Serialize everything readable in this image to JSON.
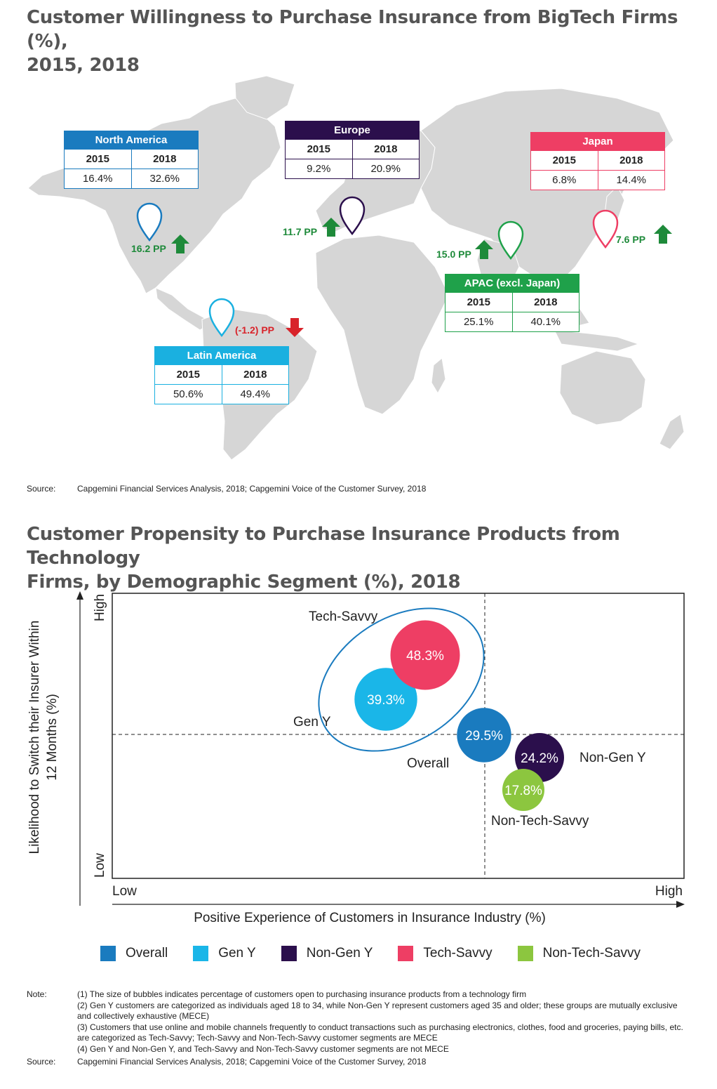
{
  "map_section": {
    "title_line1": "Customer Willingness to Purchase Insurance from BigTech Firms (%),",
    "title_line2": "2015, 2018",
    "year_a": "2015",
    "year_b": "2018",
    "regions": [
      {
        "name": "North America",
        "v2015": "16.4%",
        "v2018": "32.6%",
        "change": "16.2 PP",
        "direction": "up",
        "color": "#1a7bbf"
      },
      {
        "name": "Europe",
        "v2015": "9.2%",
        "v2018": "20.9%",
        "change": "11.7 PP",
        "direction": "up",
        "color": "#2b0f4c"
      },
      {
        "name": "Japan",
        "v2015": "6.8%",
        "v2018": "14.4%",
        "change": "7.6 PP",
        "direction": "up",
        "color": "#ee3e64"
      },
      {
        "name": "APAC (excl. Japan)",
        "v2015": "25.1%",
        "v2018": "40.1%",
        "change": "15.0 PP",
        "direction": "up",
        "color": "#1fa14a"
      },
      {
        "name": "Latin America",
        "v2015": "50.6%",
        "v2018": "49.4%",
        "change": "(-1.2) PP",
        "direction": "down",
        "color": "#1ab0e0"
      }
    ],
    "source_label": "Source:",
    "source_text": "Capgemini Financial Services Analysis, 2018; Capgemini Voice of the Customer Survey, 2018"
  },
  "chart_section": {
    "title_line1": "Customer Propensity to Purchase Insurance Products from Technology",
    "title_line2": "Firms, by Demographic Segment (%), 2018"
  },
  "chart_data": {
    "type": "scatter",
    "title": "Customer Propensity to Purchase Insurance Products from Technology Firms, by Demographic Segment (%), 2018",
    "xlabel": "Positive Experience of Customers in Insurance Industry (%)",
    "ylabel_line1": "Likelihood to Switch their Insurer Within",
    "ylabel_line2": "12 Months (%)",
    "x_low": "Low",
    "x_high": "High",
    "y_low": "Low",
    "y_high": "High",
    "bubble_size_meaning": "percentage of customers open to purchasing insurance products from a technology firm",
    "series": [
      {
        "name": "Overall",
        "value": 29.5,
        "label": "29.5%",
        "color": "#1a7bbf"
      },
      {
        "name": "Gen Y",
        "value": 39.3,
        "label": "39.3%",
        "color": "#1ab6e8"
      },
      {
        "name": "Non-Gen Y",
        "value": 24.2,
        "label": "24.2%",
        "color": "#2b0f4c"
      },
      {
        "name": "Tech-Savvy",
        "value": 48.3,
        "label": "48.3%",
        "color": "#ee3e64"
      },
      {
        "name": "Non-Tech-Savvy",
        "value": 17.8,
        "label": "17.8%",
        "color": "#8cc63f"
      }
    ],
    "annotation": "Tech-Savvy",
    "grid": "quadrant dashed lines",
    "legend_position": "bottom"
  },
  "notes": {
    "label": "Note:",
    "items": [
      "(1) The size of bubbles indicates percentage of customers open to purchasing insurance products from a technology firm",
      "(2) Gen Y customers are categorized as individuals aged 18 to 34, while Non-Gen Y represent customers aged 35 and older; these groups are mutually exclusive and collectively exhaustive (MECE)",
      "(3) Customers that use online and mobile channels frequently to conduct transactions such as purchasing electronics, clothes, food and groceries, paying bills, etc. are categorized as Tech-Savvy; Tech-Savvy and Non-Tech-Savvy customer segments are MECE",
      "(4) Gen Y and Non-Gen Y, and Tech-Savvy and Non-Tech-Savvy customer segments are not MECE"
    ],
    "source_label": "Source:",
    "source_text": "Capgemini Financial Services Analysis, 2018; Capgemini Voice of the Customer Survey, 2018"
  }
}
